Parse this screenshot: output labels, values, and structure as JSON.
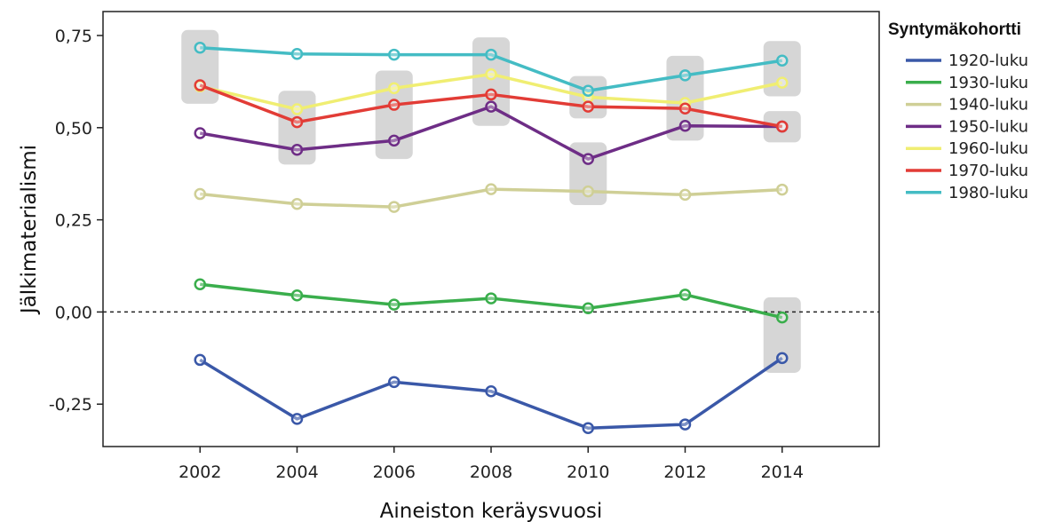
{
  "chart_data": {
    "type": "line",
    "title": "",
    "xlabel": "Aineiston keräysvuosi",
    "ylabel": "Jälkimaterialismi",
    "x": [
      2002,
      2004,
      2006,
      2008,
      2010,
      2012,
      2014
    ],
    "x_tick_labels": [
      "2002",
      "2004",
      "2006",
      "2008",
      "2010",
      "2012",
      "2014"
    ],
    "y_ticks": [
      -0.25,
      0.0,
      0.25,
      0.5,
      0.75
    ],
    "y_tick_labels": [
      "-0,25",
      "0,00",
      "0,25",
      "0,50",
      "0,75"
    ],
    "xlim": [
      2000,
      2016
    ],
    "ylim": [
      -0.365,
      0.815
    ],
    "zero_reference_line": "dotted",
    "grid": false,
    "legend": {
      "title": "Syntymäkohortti",
      "placement": "right"
    },
    "series": [
      {
        "name": "1920-luku",
        "color": "#3a58a8",
        "values": [
          -0.13,
          -0.29,
          -0.19,
          -0.215,
          -0.315,
          -0.305,
          -0.125
        ]
      },
      {
        "name": "1930-luku",
        "color": "#3aae4c",
        "values": [
          0.075,
          0.045,
          0.02,
          0.037,
          0.01,
          0.047,
          -0.015
        ]
      },
      {
        "name": "1940-luku",
        "color": "#cfcf96",
        "values": [
          0.32,
          0.293,
          0.285,
          0.333,
          0.327,
          0.318,
          0.332
        ]
      },
      {
        "name": "1950-luku",
        "color": "#6e2d86",
        "values": [
          0.485,
          0.44,
          0.465,
          0.557,
          0.415,
          0.505,
          0.503
        ]
      },
      {
        "name": "1960-luku",
        "color": "#f0ee72",
        "values": [
          0.612,
          0.55,
          0.607,
          0.645,
          0.583,
          0.567,
          0.622
        ]
      },
      {
        "name": "1970-luku",
        "color": "#e23c36",
        "values": [
          0.615,
          0.515,
          0.562,
          0.59,
          0.557,
          0.552,
          0.503
        ]
      },
      {
        "name": "1980-luku",
        "color": "#44bcc4",
        "values": [
          0.717,
          0.7,
          0.698,
          0.698,
          0.6,
          0.642,
          0.682
        ]
      }
    ],
    "highlight_regions": [
      {
        "x": 2002,
        "y_range": [
          0.565,
          0.765
        ]
      },
      {
        "x": 2004,
        "y_range": [
          0.4,
          0.6
        ]
      },
      {
        "x": 2006,
        "y_range": [
          0.415,
          0.655
        ]
      },
      {
        "x": 2008,
        "y_range": [
          0.505,
          0.745
        ]
      },
      {
        "x": 2010,
        "y_range": [
          0.525,
          0.64
        ]
      },
      {
        "x": 2010,
        "y_range": [
          0.29,
          0.46
        ]
      },
      {
        "x": 2012,
        "y_range": [
          0.465,
          0.695
        ]
      },
      {
        "x": 2014,
        "y_range": [
          0.585,
          0.735
        ]
      },
      {
        "x": 2014,
        "y_range": [
          0.46,
          0.545
        ]
      },
      {
        "x": 2014,
        "y_range": [
          -0.165,
          0.04
        ]
      }
    ]
  }
}
